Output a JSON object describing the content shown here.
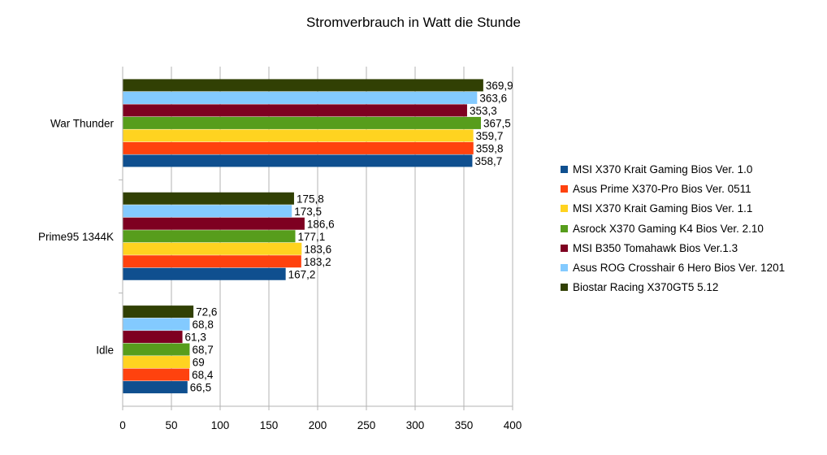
{
  "chart_data": {
    "type": "bar",
    "orientation": "horizontal",
    "title": "Stromverbrauch in Watt die Stunde",
    "xlabel": "",
    "ylabel": "",
    "categories": [
      "War Thunder",
      "Prime95 1344K",
      "Idle"
    ],
    "xlim": [
      0,
      400
    ],
    "x_ticks": [
      "0",
      "50",
      "100",
      "150",
      "200",
      "250",
      "300",
      "350",
      "400"
    ],
    "grid": true,
    "legend_position": "right",
    "series": [
      {
        "name": "MSI X370 Krait Gaming Bios Ver. 1.0",
        "color": "#0f4f8f",
        "values": [
          358.7,
          167.2,
          66.5
        ],
        "labels": [
          "358,7",
          "167,2",
          "66,5"
        ]
      },
      {
        "name": "Asus Prime X370-Pro Bios Ver. 0511",
        "color": "#ff420e",
        "values": [
          359.8,
          183.2,
          68.4
        ],
        "labels": [
          "359,8",
          "183,2",
          "68,4"
        ]
      },
      {
        "name": "MSI X370 Krait Gaming Bios Ver. 1.1",
        "color": "#ffd320",
        "values": [
          359.7,
          183.6,
          69
        ],
        "labels": [
          "359,7",
          "183,6",
          "69"
        ]
      },
      {
        "name": "Asrock X370 Gaming K4 Bios Ver. 2.10",
        "color": "#579d1c",
        "values": [
          367.5,
          177.1,
          68.7
        ],
        "labels": [
          "367,5",
          "177,1",
          "68,7"
        ]
      },
      {
        "name": "MSI B350 Tomahawk Bios Ver.1.3",
        "color": "#7e0021",
        "values": [
          353.3,
          186.6,
          61.3
        ],
        "labels": [
          "353,3",
          "186,6",
          "61,3"
        ]
      },
      {
        "name": "Asus ROG Crosshair 6 Hero Bios Ver. 1201",
        "color": "#83caff",
        "values": [
          363.6,
          173.5,
          68.8
        ],
        "labels": [
          "363,6",
          "173,5",
          "68,8"
        ]
      },
      {
        "name": "Biostar Racing X370GT5 5.12",
        "color": "#314004",
        "values": [
          369.9,
          175.8,
          72.6
        ],
        "labels": [
          "369,9",
          "175,8",
          "72,6"
        ]
      }
    ]
  }
}
